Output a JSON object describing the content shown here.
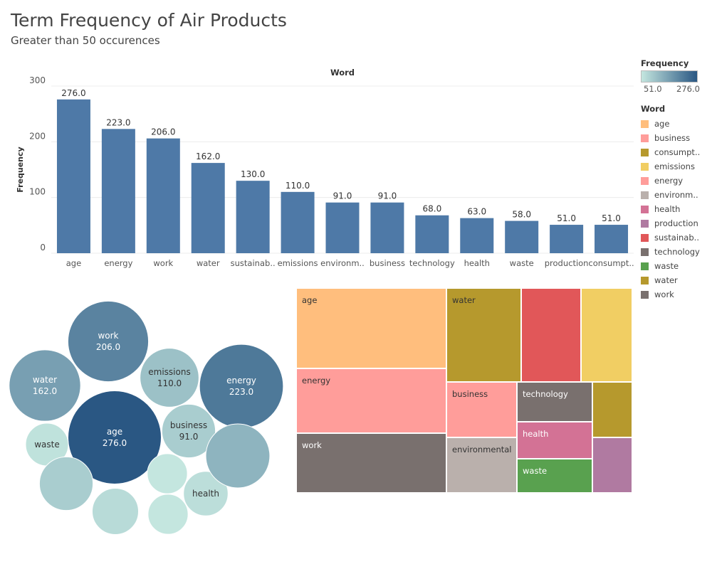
{
  "title": "Term Frequency of Air Products",
  "subtitle": "Greater than 50 occurences",
  "colors": {
    "bar": "#4e79a7",
    "gradient_low": "#c4e6df",
    "gradient_high": "#2a5783"
  },
  "legend": {
    "frequency_title": "Frequency",
    "frequency_min": "51.0",
    "frequency_max": "276.0",
    "word_title": "Word",
    "items": [
      {
        "label": "age",
        "color": "#ffbe7d"
      },
      {
        "label": "business",
        "color": "#ff9d9a"
      },
      {
        "label": "consumpt..",
        "color": "#b6992d"
      },
      {
        "label": "emissions",
        "color": "#f1ce63"
      },
      {
        "label": "energy",
        "color": "#ff9d9a"
      },
      {
        "label": "environm..",
        "color": "#bab0ac"
      },
      {
        "label": "health",
        "color": "#d37295"
      },
      {
        "label": "production",
        "color": "#b07aa1"
      },
      {
        "label": "sustainab..",
        "color": "#e15759"
      },
      {
        "label": "technology",
        "color": "#79706e"
      },
      {
        "label": "waste",
        "color": "#59a14f"
      },
      {
        "label": "water",
        "color": "#b6992d"
      },
      {
        "label": "work",
        "color": "#79706e"
      }
    ]
  },
  "chart_data": [
    {
      "type": "bar",
      "title": "Word",
      "ylabel": "Frequency",
      "xlabel": "",
      "ylim": [
        0,
        300
      ],
      "yticks": [
        "0",
        "100",
        "200",
        "300"
      ],
      "grid": true,
      "categories": [
        "age",
        "energy",
        "work",
        "water",
        "sustainab..",
        "emissions",
        "environm..",
        "business",
        "technology",
        "health",
        "waste",
        "production",
        "consumpt.."
      ],
      "values": [
        276,
        223,
        206,
        162,
        130,
        110,
        91,
        91,
        68,
        63,
        58,
        51,
        51
      ],
      "value_labels": [
        "276.0",
        "223.0",
        "206.0",
        "162.0",
        "130.0",
        "110.0",
        "91.0",
        "91.0",
        "68.0",
        "63.0",
        "58.0",
        "51.0",
        "51.0"
      ]
    },
    {
      "type": "bubble",
      "color_encoding": "Frequency",
      "bubbles": [
        {
          "label": "work",
          "value": 206,
          "value_label": "206.0"
        },
        {
          "label": "water",
          "value": 162,
          "value_label": "162.0"
        },
        {
          "label": "emissions",
          "value": 110,
          "value_label": "110.0"
        },
        {
          "label": "energy",
          "value": 223,
          "value_label": "223.0"
        },
        {
          "label": "age",
          "value": 276,
          "value_label": "276.0"
        },
        {
          "label": "business",
          "value": 91,
          "value_label": "91.0"
        },
        {
          "label": "waste",
          "value": 58,
          "value_label": ""
        },
        {
          "label": "health",
          "value": 63,
          "value_label": ""
        },
        {
          "label": "",
          "value": 130,
          "value_label": ""
        },
        {
          "label": "",
          "value": 91,
          "value_label": ""
        },
        {
          "label": "",
          "value": 68,
          "value_label": ""
        },
        {
          "label": "",
          "value": 51,
          "value_label": ""
        },
        {
          "label": "",
          "value": 51,
          "value_label": ""
        }
      ]
    },
    {
      "type": "treemap",
      "color_encoding": "Word",
      "cells": [
        {
          "label": "age",
          "value": 276,
          "color": "#ffbe7d"
        },
        {
          "label": "energy",
          "value": 223,
          "color": "#ff9d9a"
        },
        {
          "label": "work",
          "value": 206,
          "color": "#79706e"
        },
        {
          "label": "water",
          "value": 162,
          "color": "#b6992d"
        },
        {
          "label": "",
          "value": 130,
          "color": "#e15759"
        },
        {
          "label": "",
          "value": 110,
          "color": "#f1ce63"
        },
        {
          "label": "business",
          "value": 91,
          "color": "#ff9d9a"
        },
        {
          "label": "environmental",
          "value": 91,
          "color": "#bab0ac"
        },
        {
          "label": "technology",
          "value": 68,
          "color": "#79706e"
        },
        {
          "label": "health",
          "value": 63,
          "color": "#d37295"
        },
        {
          "label": "waste",
          "value": 58,
          "color": "#59a14f"
        },
        {
          "label": "",
          "value": 51,
          "color": "#b6992d"
        },
        {
          "label": "",
          "value": 51,
          "color": "#b07aa1"
        }
      ]
    }
  ]
}
